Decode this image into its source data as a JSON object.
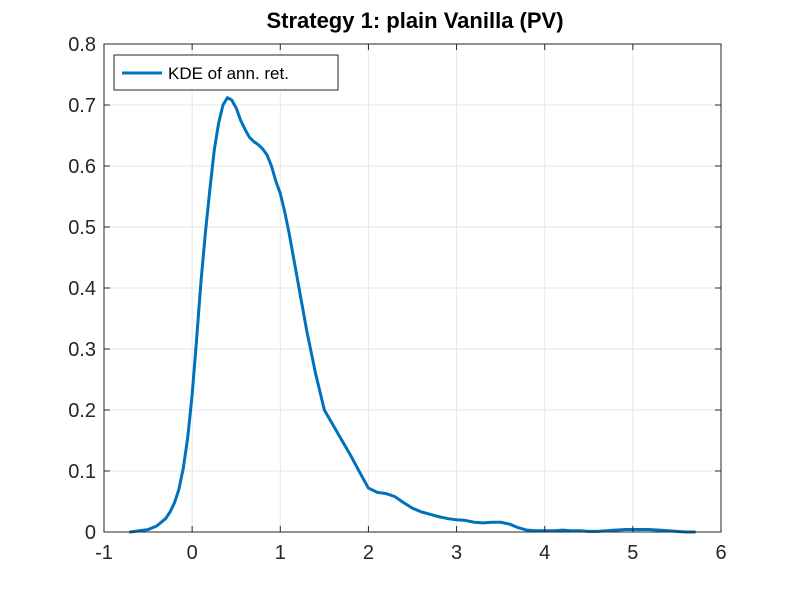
{
  "chart_data": {
    "type": "line",
    "title": "Strategy 1: plain Vanilla (PV)",
    "xlabel": "",
    "ylabel": "",
    "xlim": [
      -1,
      6
    ],
    "ylim": [
      0,
      0.8
    ],
    "xticks": [
      -1,
      0,
      1,
      2,
      3,
      4,
      5,
      6
    ],
    "yticks": [
      0,
      0.1,
      0.2,
      0.3,
      0.4,
      0.5,
      0.6,
      0.7,
      0.8
    ],
    "xtick_labels": [
      "-1",
      "0",
      "1",
      "2",
      "3",
      "4",
      "5",
      "6"
    ],
    "ytick_labels": [
      "0",
      "0.1",
      "0.2",
      "0.3",
      "0.4",
      "0.5",
      "0.6",
      "0.7",
      "0.8"
    ],
    "grid": true,
    "legend_position": "top-left",
    "series": [
      {
        "name": "KDE of ann. ret.",
        "color": "#0072bd",
        "x": [
          -0.7,
          -0.6,
          -0.5,
          -0.4,
          -0.3,
          -0.25,
          -0.2,
          -0.15,
          -0.1,
          -0.05,
          0.0,
          0.05,
          0.1,
          0.15,
          0.2,
          0.25,
          0.3,
          0.35,
          0.4,
          0.45,
          0.5,
          0.55,
          0.6,
          0.65,
          0.7,
          0.75,
          0.8,
          0.85,
          0.9,
          0.95,
          1.0,
          1.05,
          1.1,
          1.15,
          1.2,
          1.3,
          1.4,
          1.5,
          1.6,
          1.7,
          1.8,
          1.9,
          2.0,
          2.1,
          2.2,
          2.3,
          2.4,
          2.5,
          2.6,
          2.7,
          2.8,
          2.9,
          3.0,
          3.1,
          3.2,
          3.3,
          3.4,
          3.5,
          3.6,
          3.7,
          3.8,
          3.9,
          4.0,
          4.1,
          4.2,
          4.3,
          4.4,
          4.5,
          4.6,
          4.7,
          4.8,
          4.9,
          5.0,
          5.1,
          5.2,
          5.3,
          5.4,
          5.5,
          5.6,
          5.7
        ],
        "y": [
          0.0,
          0.002,
          0.004,
          0.01,
          0.022,
          0.033,
          0.048,
          0.07,
          0.105,
          0.155,
          0.225,
          0.315,
          0.41,
          0.49,
          0.56,
          0.625,
          0.67,
          0.7,
          0.712,
          0.708,
          0.695,
          0.675,
          0.66,
          0.647,
          0.64,
          0.635,
          0.628,
          0.618,
          0.6,
          0.575,
          0.555,
          0.525,
          0.49,
          0.45,
          0.41,
          0.33,
          0.26,
          0.2,
          0.175,
          0.15,
          0.125,
          0.098,
          0.072,
          0.065,
          0.063,
          0.058,
          0.048,
          0.039,
          0.033,
          0.029,
          0.025,
          0.022,
          0.02,
          0.019,
          0.016,
          0.015,
          0.016,
          0.016,
          0.013,
          0.007,
          0.003,
          0.002,
          0.002,
          0.002,
          0.003,
          0.002,
          0.002,
          0.001,
          0.001,
          0.002,
          0.003,
          0.004,
          0.004,
          0.004,
          0.004,
          0.003,
          0.002,
          0.001,
          0.0,
          0.0
        ]
      }
    ]
  }
}
